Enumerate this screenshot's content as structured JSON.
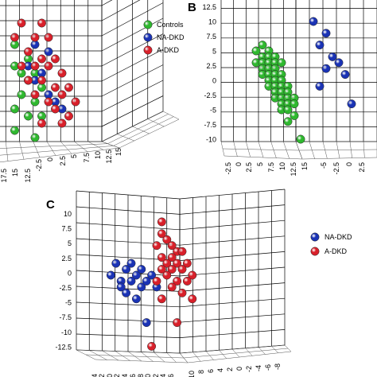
{
  "colors": {
    "controls": "#2fb82f",
    "na_dkd": "#1a33b5",
    "a_dkd": "#d8202a"
  },
  "chart_data": [
    {
      "panel": "A",
      "type": "scatter",
      "label": "",
      "z_ticks": [],
      "floor_ticks": [
        "17.5",
        "15",
        "12.5",
        "-2.5",
        "0",
        "2.5",
        "5",
        "7.5",
        "10",
        "12.5",
        "15"
      ],
      "legend": [
        "Controls",
        "NA-DKD",
        "A-DKD"
      ],
      "series": [
        {
          "name": "Controls",
          "color_key": "controls",
          "points": [
            [
              -1,
              6
            ],
            [
              1,
              4
            ],
            [
              -1,
              3
            ],
            [
              0,
              2
            ],
            [
              2,
              2
            ],
            [
              1,
              1
            ],
            [
              3,
              0
            ],
            [
              0,
              -1
            ],
            [
              2,
              -2
            ],
            [
              -1,
              -3
            ],
            [
              1,
              -4
            ],
            [
              3,
              -4
            ],
            [
              -1,
              -6
            ],
            [
              2,
              -7
            ]
          ]
        },
        {
          "name": "NA-DKD",
          "color_key": "na_dkd",
          "points": [
            [
              2,
              6
            ],
            [
              4,
              5
            ],
            [
              1,
              3
            ],
            [
              3,
              2
            ],
            [
              2,
              1
            ],
            [
              4,
              -1
            ],
            [
              5,
              -2
            ],
            [
              6,
              -3
            ]
          ]
        },
        {
          "name": "A-DKD",
          "color_key": "a_dkd",
          "points": [
            [
              0,
              9
            ],
            [
              3,
              9
            ],
            [
              -1,
              7
            ],
            [
              2,
              7
            ],
            [
              4,
              7
            ],
            [
              1,
              5
            ],
            [
              3,
              4
            ],
            [
              5,
              4
            ],
            [
              0,
              3
            ],
            [
              2,
              3
            ],
            [
              4,
              3
            ],
            [
              6,
              2
            ],
            [
              1,
              1
            ],
            [
              3,
              1
            ],
            [
              5,
              0
            ],
            [
              7,
              0
            ],
            [
              2,
              -1
            ],
            [
              4,
              -2
            ],
            [
              6,
              -1
            ],
            [
              8,
              -2
            ],
            [
              5,
              -3
            ],
            [
              7,
              -4
            ],
            [
              3,
              -5
            ],
            [
              6,
              -5
            ]
          ]
        }
      ]
    },
    {
      "panel": "B",
      "type": "scatter",
      "label": "B",
      "z_ticks": [
        "12.5",
        "10",
        "7.5",
        "5",
        "2.5",
        "0",
        "-2.5",
        "-5",
        "-7.5",
        "-10"
      ],
      "floor_ticks": [
        "-2.5",
        "0",
        "2.5",
        "5",
        "7.5",
        "10",
        "12.5",
        "15",
        "-5",
        "-2.5",
        "0",
        "2.5"
      ],
      "series": [
        {
          "name": "Controls",
          "color_key": "controls",
          "points": [
            [
              0,
              5
            ],
            [
              1,
              6
            ],
            [
              2,
              5
            ],
            [
              1,
              4
            ],
            [
              2,
              4
            ],
            [
              3,
              4
            ],
            [
              0,
              3
            ],
            [
              1,
              3
            ],
            [
              2,
              3
            ],
            [
              3,
              3
            ],
            [
              4,
              3
            ],
            [
              1,
              2
            ],
            [
              2,
              2
            ],
            [
              3,
              2
            ],
            [
              1,
              1
            ],
            [
              2,
              1
            ],
            [
              3,
              1
            ],
            [
              4,
              1
            ],
            [
              2,
              0
            ],
            [
              3,
              0
            ],
            [
              4,
              0
            ],
            [
              2,
              -1
            ],
            [
              3,
              -1
            ],
            [
              4,
              -1
            ],
            [
              5,
              -1
            ],
            [
              3,
              -2
            ],
            [
              4,
              -2
            ],
            [
              5,
              -2
            ],
            [
              3,
              -3
            ],
            [
              4,
              -3
            ],
            [
              5,
              -3
            ],
            [
              6,
              -3
            ],
            [
              4,
              -4
            ],
            [
              5,
              -4
            ],
            [
              6,
              -4
            ],
            [
              4,
              -5
            ],
            [
              5,
              -5
            ],
            [
              6,
              -6
            ],
            [
              5,
              -7
            ],
            [
              7,
              -10
            ]
          ]
        },
        {
          "name": "NA-DKD",
          "color_key": "na_dkd",
          "points": [
            [
              9,
              10
            ],
            [
              11,
              8
            ],
            [
              10,
              6
            ],
            [
              12,
              4
            ],
            [
              13,
              3
            ],
            [
              11,
              2
            ],
            [
              14,
              1
            ],
            [
              10,
              -1
            ],
            [
              15,
              -4
            ]
          ]
        }
      ]
    },
    {
      "panel": "C",
      "type": "scatter",
      "label": "C",
      "z_ticks": [
        "10",
        "7.5",
        "5",
        "2.5",
        "0",
        "-2.5",
        "-5",
        "-7.5",
        "-10",
        "-12.5"
      ],
      "floor_ticks": [
        "-4",
        "-2",
        "0",
        "2",
        "4",
        "6",
        "8",
        "10",
        "12",
        "14",
        "16",
        "10",
        "8",
        "6",
        "4",
        "2",
        "0",
        "-2",
        "-4",
        "-6",
        "-8"
      ],
      "legend": [
        "NA-DKD",
        "A-DKD"
      ],
      "series": [
        {
          "name": "NA-DKD",
          "color_key": "na_dkd",
          "points": [
            [
              -4,
              0
            ],
            [
              -2,
              -1
            ],
            [
              -3,
              2
            ],
            [
              -1,
              1
            ],
            [
              0,
              2
            ],
            [
              1,
              0
            ],
            [
              2,
              -2
            ],
            [
              0,
              -1
            ],
            [
              -2,
              -2
            ],
            [
              1,
              -4
            ],
            [
              3,
              -1
            ],
            [
              2,
              1
            ],
            [
              4,
              0
            ],
            [
              -1,
              -3
            ],
            [
              3,
              -8
            ],
            [
              5,
              -2
            ]
          ]
        },
        {
          "name": "A-DKD",
          "color_key": "a_dkd",
          "points": [
            [
              6,
              9
            ],
            [
              6,
              7
            ],
            [
              5,
              5
            ],
            [
              7,
              6
            ],
            [
              8,
              5
            ],
            [
              9,
              4
            ],
            [
              10,
              4
            ],
            [
              6,
              3
            ],
            [
              8,
              3
            ],
            [
              7,
              2
            ],
            [
              9,
              2
            ],
            [
              11,
              2
            ],
            [
              6,
              1
            ],
            [
              8,
              1
            ],
            [
              10,
              1
            ],
            [
              12,
              0
            ],
            [
              7,
              0
            ],
            [
              9,
              -1
            ],
            [
              11,
              -1
            ],
            [
              5,
              -1
            ],
            [
              8,
              -2
            ],
            [
              10,
              -3
            ],
            [
              12,
              -4
            ],
            [
              6,
              -4
            ],
            [
              9,
              -8
            ],
            [
              4,
              -12
            ]
          ]
        }
      ]
    }
  ]
}
